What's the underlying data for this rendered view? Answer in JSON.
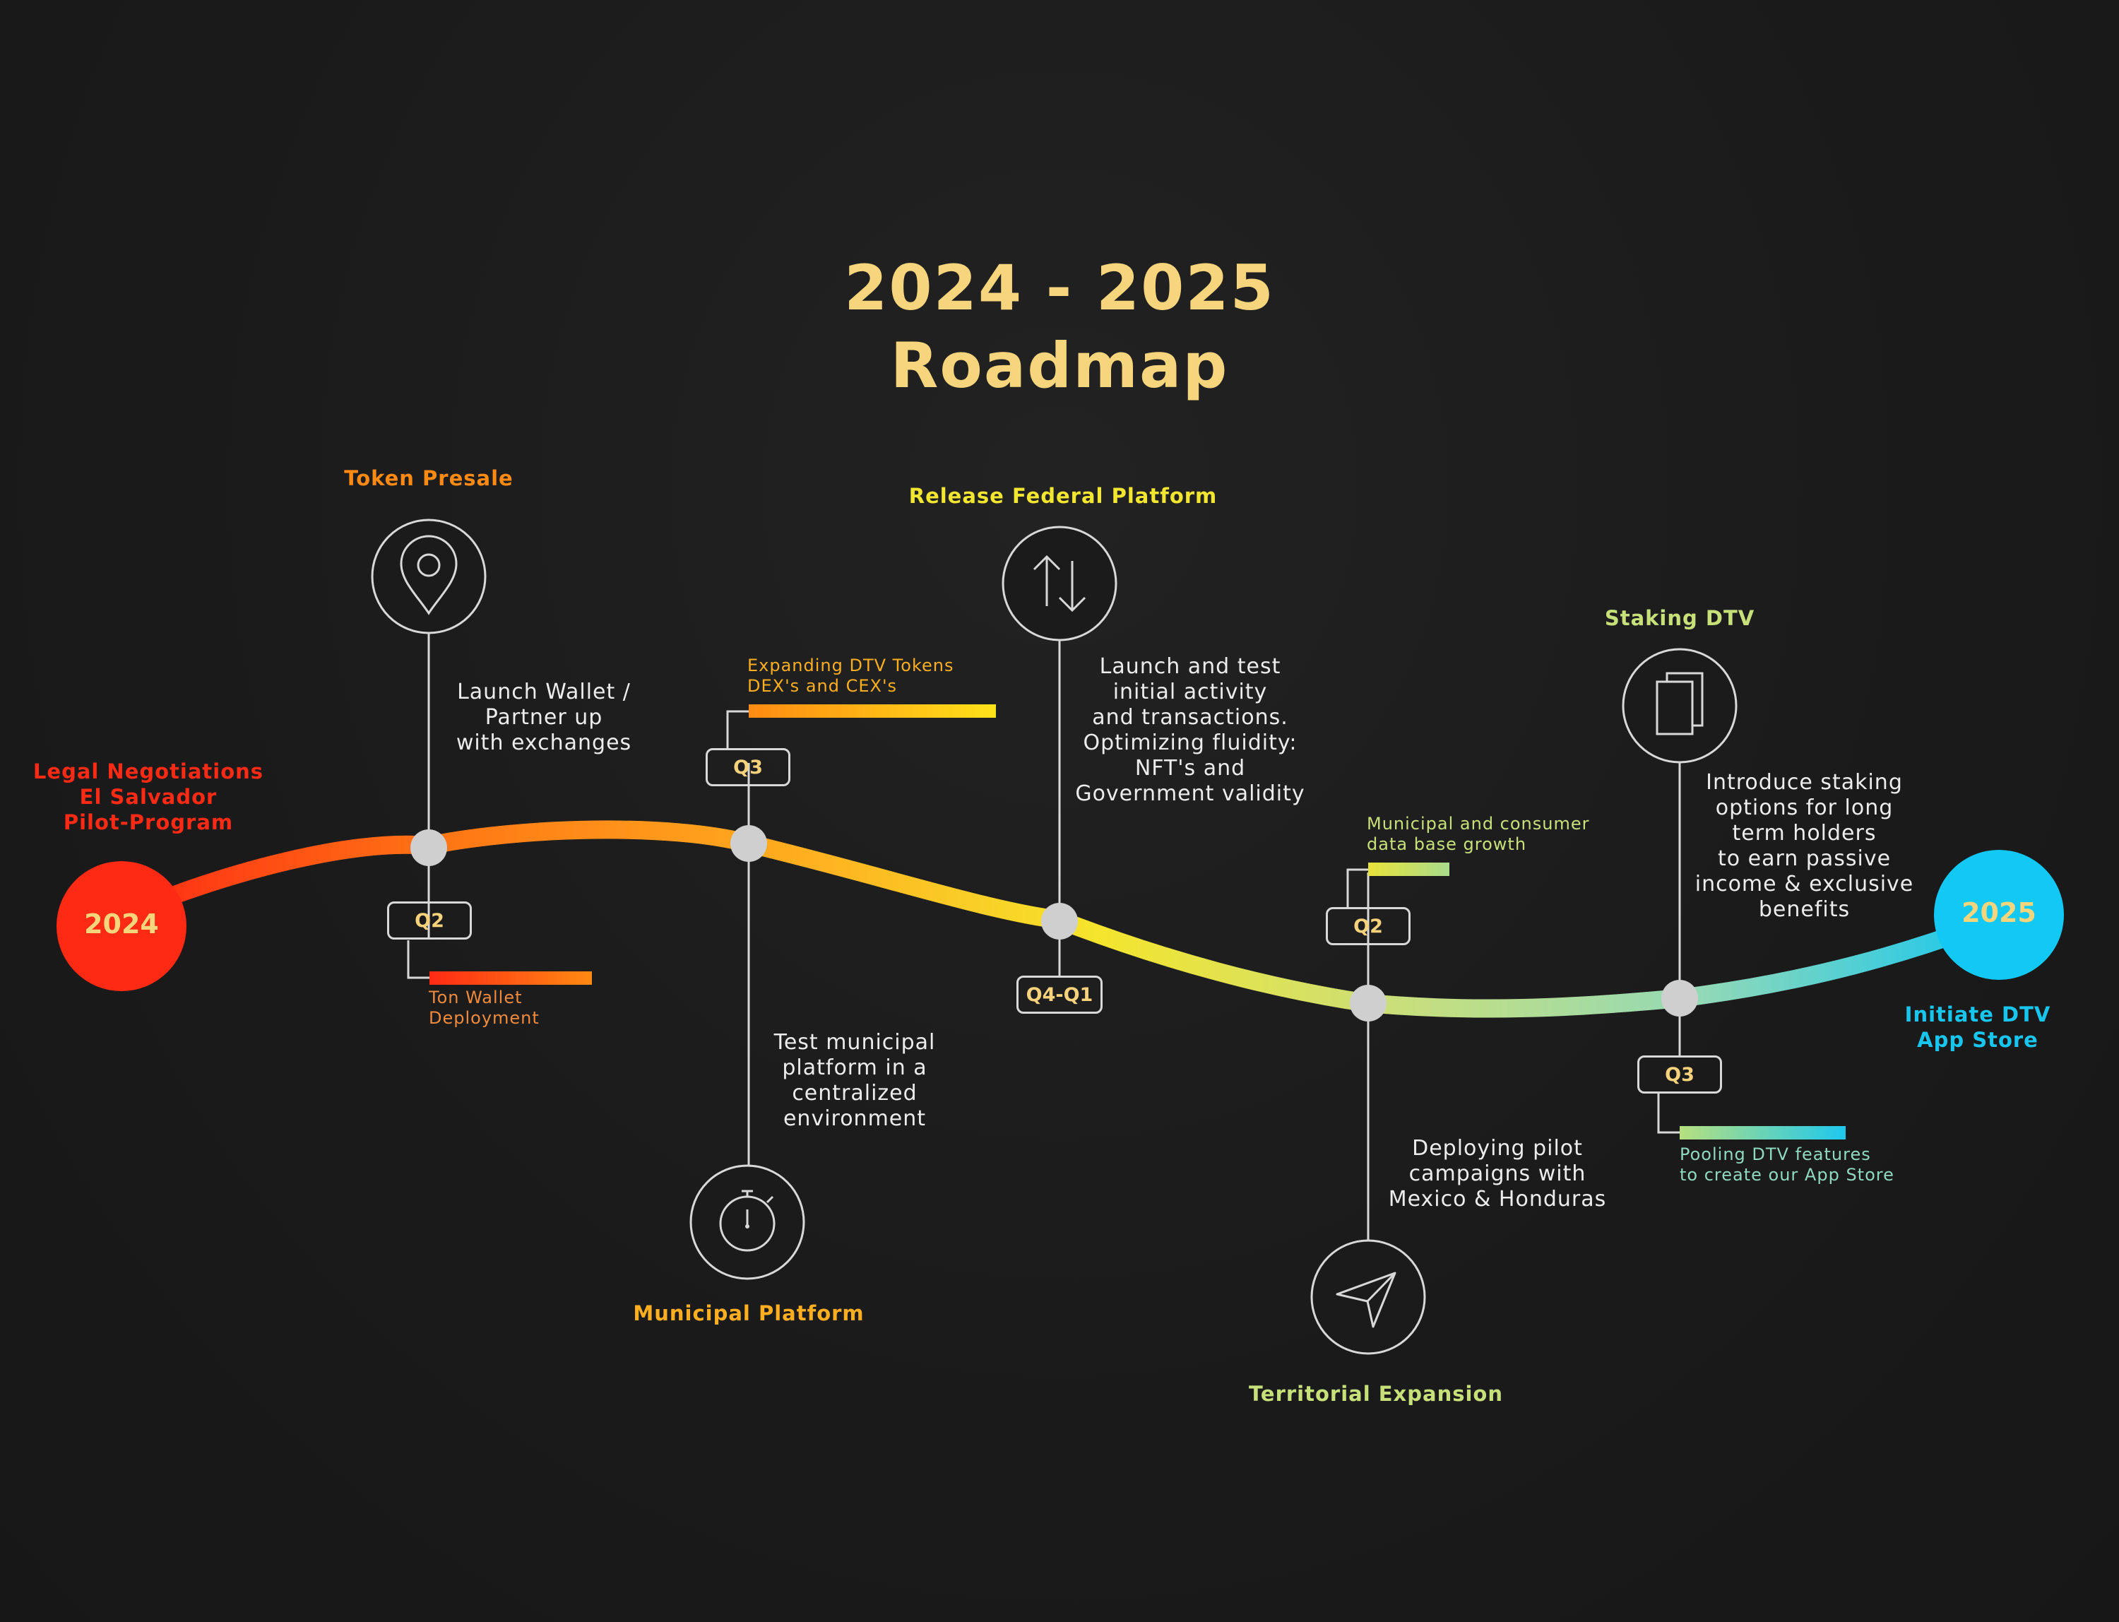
{
  "title": {
    "line1": "2024 - 2025",
    "line2": "Roadmap"
  },
  "colors": {
    "title": "#f6d57d",
    "start": "#ff2a14",
    "orange": "#ff8a12",
    "amber": "#ffb21f",
    "yellow": "#f2e630",
    "lime": "#c8e07a",
    "mint": "#8fd9c0",
    "cyan": "#16c6ef"
  },
  "endpoints": {
    "start_year": "2024",
    "end_year": "2025",
    "start_label": "Legal Negotiations\nEl Salvador\nPilot-Program",
    "end_label": "Initiate DTV\nApp Store"
  },
  "milestones": [
    {
      "name": "Token Presale",
      "icon": "map-pin-icon",
      "quarter": "Q2",
      "description": "Launch Wallet /\nPartner up\nwith exchanges",
      "note": "Ton Wallet\nDeployment"
    },
    {
      "name": "Municipal Platform",
      "icon": "stopwatch-icon",
      "quarter": "Q3",
      "description": "Test municipal\nplatform in a\ncentralized\nenvironment",
      "note": "Expanding DTV Tokens\nDEX's and CEX's"
    },
    {
      "name": "Release Federal Platform",
      "icon": "up-down-arrows-icon",
      "quarter": "Q4-Q1",
      "description": "Launch and test\ninitial activity\nand transactions.\nOptimizing fluidity:\nNFT's and\nGovernment validity"
    },
    {
      "name": "Territorial Expansion",
      "icon": "send-arrow-icon",
      "quarter": "Q2",
      "description": "Deploying pilot\ncampaigns with\nMexico & Honduras",
      "note": "Municipal and consumer\ndata base growth"
    },
    {
      "name": "Staking DTV",
      "icon": "copy-pages-icon",
      "quarter": "Q3",
      "description": "Introduce staking\noptions for long\nterm holders\nto earn passive\nincome & exclusive\nbenefits",
      "note": "Pooling DTV features\nto create our App Store"
    }
  ]
}
